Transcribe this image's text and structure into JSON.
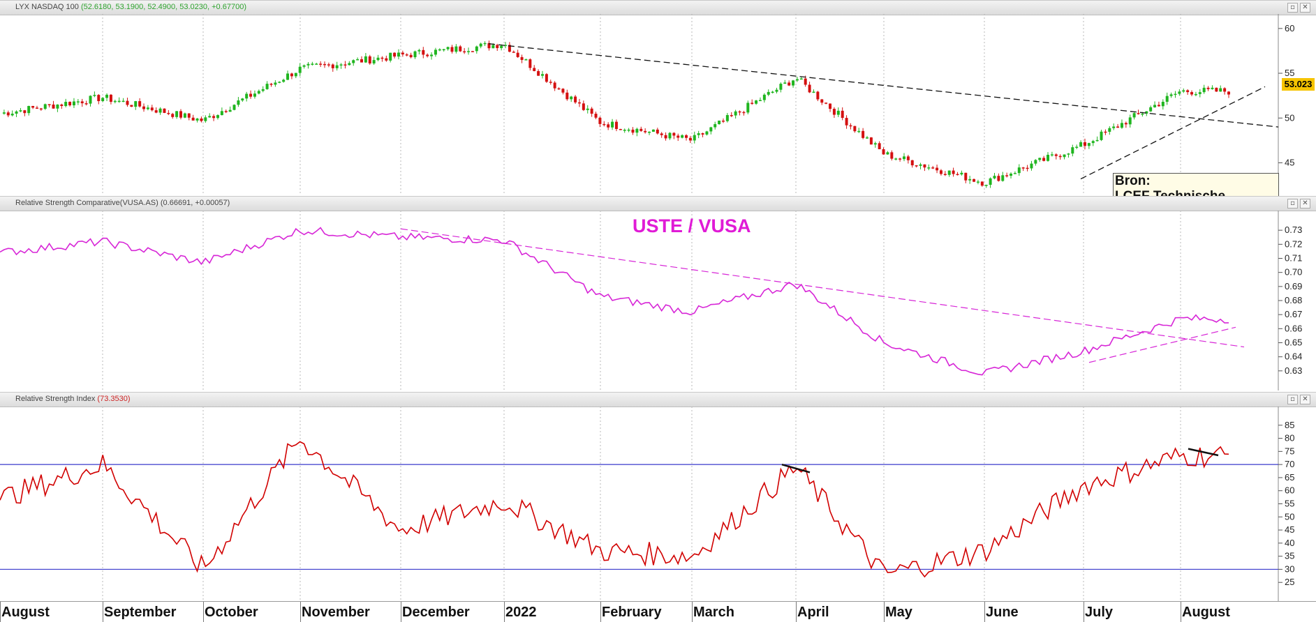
{
  "panels": {
    "price": {
      "title": "LYX NASDAQ 100",
      "values_text": "(52.6180, 53.1900, 52.4900, 53.0230, +0.67700)",
      "last_price": "53.023",
      "y_ticks": [
        "60",
        "55",
        "50",
        "45"
      ],
      "note_line1": "Bron:",
      "note_line2": "LCEF Technische Analyse"
    },
    "rsc": {
      "title": "Relative Strength Comparative(VUSA.AS)",
      "values_text": "(0.66691, +0.00057)",
      "overlay_label": "USTE / VUSA",
      "y_ticks": [
        "0.73",
        "0.72",
        "0.71",
        "0.70",
        "0.69",
        "0.68",
        "0.67",
        "0.66",
        "0.65",
        "0.64",
        "0.63"
      ]
    },
    "rsi": {
      "title": "Relative Strength Index",
      "values_text": "(73.3530)",
      "y_ticks": [
        "85",
        "80",
        "75",
        "70",
        "65",
        "60",
        "55",
        "50",
        "45",
        "40",
        "35",
        "30",
        "25"
      ]
    }
  },
  "x_axis": {
    "labels": [
      "August",
      "September",
      "October",
      "November",
      "December",
      "2022",
      "February",
      "March",
      "April",
      "May",
      "June",
      "July",
      "August"
    ]
  },
  "chart_data": [
    {
      "type": "line",
      "title": "LYX NASDAQ 100",
      "series": [
        {
          "name": "LYX NASDAQ 100",
          "x": [
            "Aug",
            "Sep",
            "Oct",
            "Nov",
            "Dec",
            "2022",
            "Feb",
            "Mar",
            "Apr",
            "May",
            "Jun",
            "Jul",
            "Aug"
          ],
          "values": [
            50.5,
            52.3,
            49.7,
            55.5,
            57.0,
            58.3,
            49.5,
            47.5,
            54.5,
            46.0,
            42.8,
            47.0,
            53.0
          ]
        }
      ],
      "ylim": [
        42,
        61
      ],
      "color_up": "#1fb51f",
      "color_down": "#d41010",
      "last_value": 53.023
    },
    {
      "type": "line",
      "title": "Relative Strength Comparative(VUSA.AS)",
      "series": [
        {
          "name": "USTE / VUSA",
          "x": [
            "Aug",
            "Sep",
            "Oct",
            "Nov",
            "Dec",
            "2022",
            "Feb",
            "Mar",
            "Apr",
            "May",
            "Jun",
            "Jul",
            "Aug"
          ],
          "values": [
            0.714,
            0.722,
            0.707,
            0.73,
            0.725,
            0.723,
            0.683,
            0.672,
            0.692,
            0.65,
            0.628,
            0.644,
            0.667
          ]
        }
      ],
      "ylim": [
        0.62,
        0.74
      ],
      "color": "#d726d7"
    },
    {
      "type": "line",
      "title": "Relative Strength Index",
      "series": [
        {
          "name": "RSI",
          "x": [
            "Aug",
            "Sep",
            "Oct",
            "Nov",
            "Dec",
            "2022",
            "Feb",
            "Mar",
            "Apr",
            "May",
            "Jun",
            "Jul",
            "Aug"
          ],
          "values": [
            57,
            70,
            30,
            80,
            45,
            56,
            37,
            35,
            69,
            28,
            37,
            62,
            73.353
          ]
        }
      ],
      "ylim": [
        20,
        90
      ],
      "reference_lines": [
        70,
        30
      ],
      "color": "#d10000"
    }
  ]
}
